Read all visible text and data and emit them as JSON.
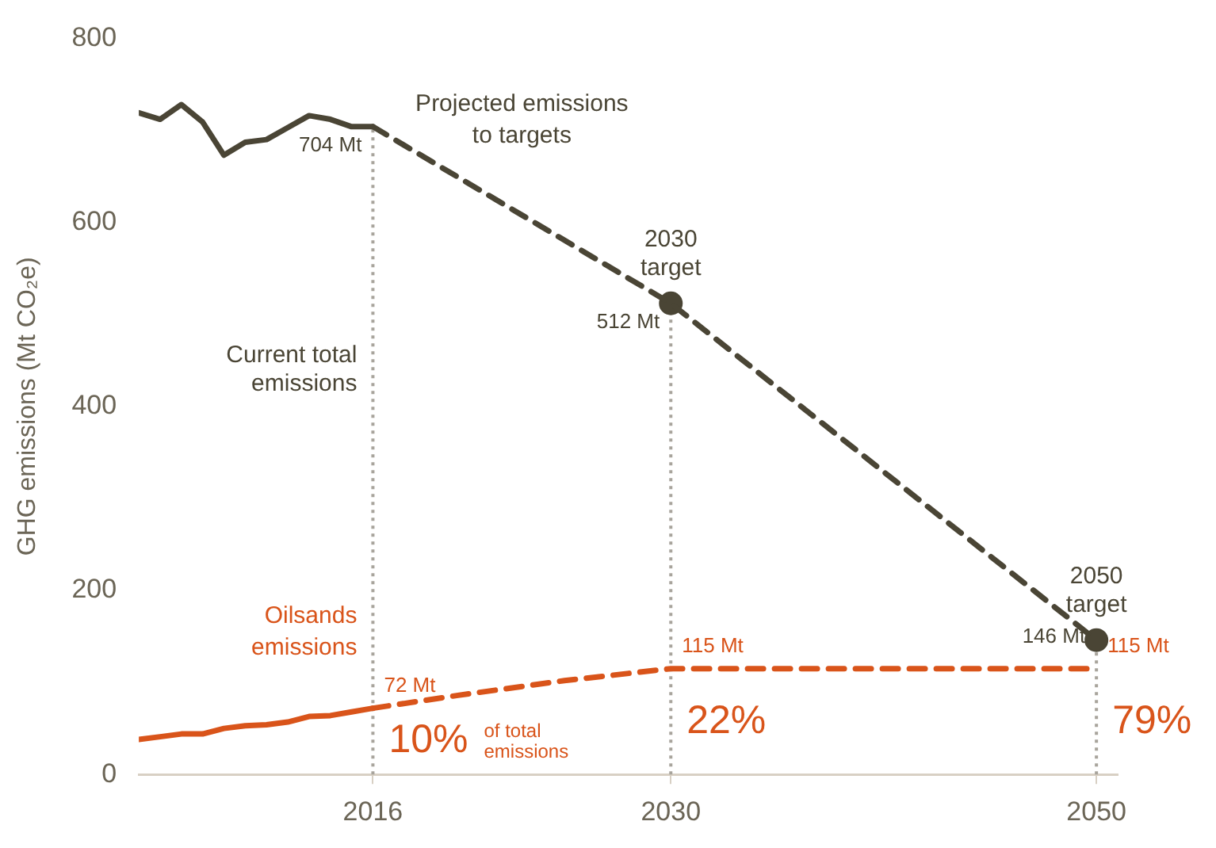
{
  "chart_data": {
    "type": "line",
    "ylabel": "GHG emissions (Mt CO₂e)",
    "xlim": [
      2005,
      2051
    ],
    "xticks": [
      2016,
      2030,
      2050
    ],
    "ylim": [
      0,
      800
    ],
    "yticks": [
      0,
      200,
      400,
      600,
      800
    ],
    "series": [
      {
        "color": "#4a4535",
        "line_style": "solid",
        "x": [
          2005,
          2006,
          2007,
          2008,
          2009,
          2010,
          2011,
          2012,
          2013,
          2014,
          2015,
          2016
        ],
        "values": [
          719,
          712,
          728,
          709,
          673,
          687,
          690,
          703,
          716,
          712,
          704,
          704
        ]
      },
      {
        "name": "Projected emissions to targets",
        "color": "#4a4535",
        "line_style": "dashed",
        "x": [
          2016,
          2030,
          2050
        ],
        "values": [
          704,
          512,
          146
        ],
        "value_labels": [
          "704 Mt",
          "512 Mt",
          "146 Mt"
        ]
      },
      {
        "name": "Oilsands emissions",
        "color": "#d9541a",
        "line_style": "solid",
        "x": [
          2005,
          2006,
          2007,
          2008,
          2009,
          2010,
          2011,
          2012,
          2013,
          2014,
          2015,
          2016
        ],
        "values": [
          38,
          41,
          44,
          44,
          50,
          53,
          54,
          57,
          63,
          64,
          68,
          72
        ]
      },
      {
        "color": "#d9541a",
        "line_style": "dashed",
        "x": [
          2016,
          2020,
          2025,
          2030,
          2050
        ],
        "values": [
          72,
          86,
          102,
          115,
          115
        ],
        "value_labels": [
          "72 Mt",
          null,
          null,
          "115 Mt",
          "115 Mt"
        ]
      },
      {
        "type": "scatter",
        "marker": "circle",
        "color": "#4a4535",
        "x": [
          2030,
          2050
        ],
        "values": [
          512,
          146
        ]
      }
    ],
    "ref_lines": [
      {
        "axis": "x",
        "value": 2016,
        "color": "#a8a49c",
        "line_style": "dotted"
      },
      {
        "axis": "x",
        "value": 2030,
        "color": "#a8a49c",
        "line_style": "dotted"
      },
      {
        "axis": "x",
        "value": 2050,
        "color": "#a8a49c",
        "line_style": "dotted"
      }
    ],
    "annotations": [
      {
        "text": "Current total emissions",
        "x": 2016,
        "y": 440
      },
      {
        "text": "2030 target",
        "x": 2030,
        "y": 512
      },
      {
        "text": "2050 target",
        "x": 2050,
        "y": 146
      },
      {
        "text": "10% of total emissions",
        "x": 2016,
        "y": 36
      },
      {
        "text": "22%",
        "x": 2030,
        "y": 57
      },
      {
        "text": "79%",
        "x": 2050,
        "y": 57
      }
    ]
  }
}
